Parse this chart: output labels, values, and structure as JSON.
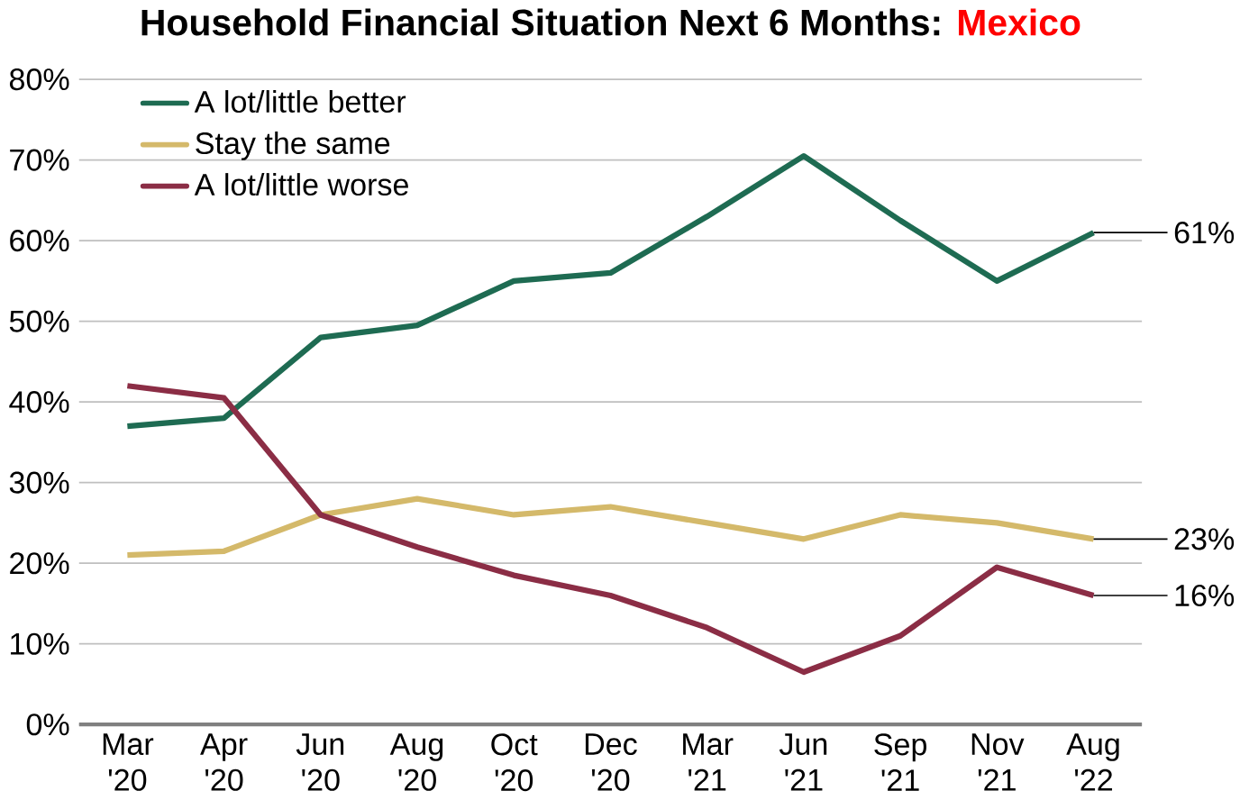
{
  "chart_data": {
    "type": "line",
    "title": "Household Financial Situation Next 6 Months:",
    "subtitle": "Mexico",
    "categories": [
      "Mar '20",
      "Apr '20",
      "Jun '20",
      "Aug '20",
      "Oct '20",
      "Dec '20",
      "Mar '21",
      "Jun '21",
      "Sep '21",
      "Nov '21",
      "Aug '22"
    ],
    "series": [
      {
        "name": "A lot/little better",
        "color": "#1e6b52",
        "values": [
          37,
          38,
          48,
          49.5,
          55,
          56,
          63,
          70.5,
          62.5,
          55,
          61
        ],
        "value_labels": [
          null,
          null,
          null,
          null,
          null,
          null,
          null,
          null,
          null,
          null,
          "61%"
        ]
      },
      {
        "name": "Stay the same",
        "color": "#d4b96a",
        "values": [
          21,
          21.5,
          26,
          28,
          26,
          27,
          25,
          23,
          26,
          25,
          23
        ],
        "value_labels": [
          null,
          null,
          null,
          null,
          null,
          null,
          null,
          null,
          null,
          null,
          "23%"
        ]
      },
      {
        "name": "A lot/little worse",
        "color": "#8b2d45",
        "values": [
          42,
          40.5,
          26,
          22,
          18.5,
          16,
          12,
          6.5,
          11,
          19.5,
          16
        ],
        "value_labels": [
          null,
          null,
          null,
          null,
          null,
          null,
          null,
          null,
          null,
          null,
          "16%"
        ]
      }
    ],
    "ylim": [
      0,
      80
    ],
    "yticks": [
      {
        "value": 0,
        "label": "0%"
      },
      {
        "value": 10,
        "label": "10%"
      },
      {
        "value": 20,
        "label": "20%"
      },
      {
        "value": 30,
        "label": "30%"
      },
      {
        "value": 40,
        "label": "40%"
      },
      {
        "value": 50,
        "label": "50%"
      },
      {
        "value": 60,
        "label": "60%"
      },
      {
        "value": 70,
        "label": "70%"
      },
      {
        "value": 80,
        "label": "80%"
      }
    ],
    "grid": "y",
    "legend": "top left",
    "marker": "none",
    "line_style": "solid"
  }
}
